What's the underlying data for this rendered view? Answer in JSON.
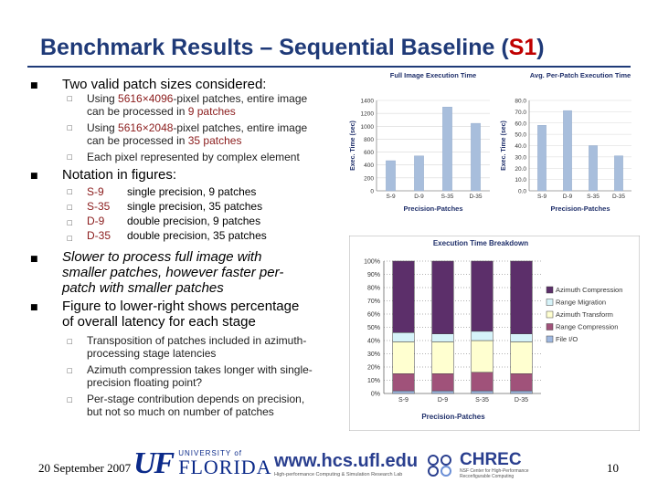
{
  "slide": {
    "title_prefix": "Benchmark Results – Sequential Baseline (",
    "title_accent": "S1",
    "title_suffix": ")",
    "bullets": [
      {
        "text": "Two valid patch sizes considered:",
        "subs": [
          {
            "pre": "Using ",
            "hl": "5616×4096",
            "post": "-pixel patches, entire image",
            "line2_pre": "can be processed in ",
            "line2_hl": "9 patches",
            "line2_post": ""
          },
          {
            "pre": "Using ",
            "hl": "5616×2048",
            "post": "-pixel patches, entire image",
            "line2_pre": "can be processed in ",
            "line2_hl": "35 patches",
            "line2_post": ""
          },
          {
            "pre": "Each pixel represented by complex element",
            "hl": "",
            "post": "",
            "line2_pre": "",
            "line2_hl": "",
            "line2_post": ""
          }
        ]
      },
      {
        "text": "Notation in figures:",
        "notation": [
          {
            "code": "S-9",
            "desc": "single precision, 9 patches"
          },
          {
            "code": "S-35",
            "desc": "single precision, 35 patches"
          },
          {
            "code": "D-9",
            "desc": "double precision, 9 patches"
          },
          {
            "code": "D-35",
            "desc": "double precision, 35 patches"
          }
        ]
      },
      {
        "lines": [
          "Slower to process full image with",
          "smaller patches, however faster per-",
          "patch with smaller patches"
        ]
      },
      {
        "lines": [
          "Figure to lower-right shows percentage",
          "of overall latency for each stage"
        ],
        "subs": [
          [
            "Transposition of patches included in azimuth-",
            "processing stage latencies"
          ],
          [
            "Azimuth compression takes longer with single-",
            "precision floating point?"
          ],
          [
            "Per-stage contribution depends on precision,",
            "but not so much on number of patches"
          ]
        ]
      }
    ],
    "footer_date": "20 September 2007",
    "page_number": "10",
    "logos": {
      "uf_mark": "UF",
      "uf_university": "UNIVERSITY of",
      "uf_florida": "FLORIDA",
      "hcs_url": "www.hcs.ufl.edu",
      "hcs_sub": "High-performance Computing & Simulation Research Lab",
      "chrec_name": "CHREC",
      "chrec_sub1": "NSF Center for High-Performance",
      "chrec_sub2": "Reconfigurable Computing"
    }
  },
  "chart_data": [
    {
      "type": "bar",
      "title": "Full Image Execution Time",
      "xlabel": "Precision-Patches",
      "ylabel": "Exec. Time (sec)",
      "categories": [
        "S-9",
        "D-9",
        "S-35",
        "D-35"
      ],
      "values": [
        500,
        580,
        1390,
        1120
      ],
      "ylim": [
        0,
        1500
      ],
      "yticks": [
        "0",
        "200",
        "400",
        "600",
        "800",
        "1000",
        "1200",
        "1400"
      ],
      "color": "#a8bedc",
      "grid": true
    },
    {
      "type": "bar",
      "title": "Avg. Per-Patch Execution Time",
      "xlabel": "Precision-Patches",
      "ylabel": "Exec. Time (sec)",
      "categories": [
        "S-9",
        "D-9",
        "S-35",
        "D-35"
      ],
      "values": [
        58,
        71,
        40,
        31
      ],
      "ylim": [
        0,
        80
      ],
      "yticks": [
        "0.0",
        "10.0",
        "20.0",
        "30.0",
        "40.0",
        "50.0",
        "60.0",
        "70.0",
        "80.0"
      ],
      "color": "#a8bedc",
      "grid": true
    },
    {
      "type": "bar",
      "stacked": true,
      "title": "Execution Time Breakdown",
      "xlabel": "Precision-Patches",
      "categories": [
        "S-9",
        "D-9",
        "S-35",
        "D-35"
      ],
      "yticks": [
        "0%",
        "10%",
        "20%",
        "30%",
        "40%",
        "50%",
        "60%",
        "70%",
        "80%",
        "90%",
        "100%"
      ],
      "ylim": [
        0,
        100
      ],
      "legend_position": "right",
      "series": [
        {
          "name": "File I/O",
          "color": "#9fb8e0",
          "values": [
            2,
            2,
            2,
            2
          ]
        },
        {
          "name": "Range Compression",
          "color": "#a0527a",
          "values": [
            13,
            13,
            14,
            13
          ]
        },
        {
          "name": "Azimuth Transform",
          "color": "#ffffd0",
          "values": [
            24,
            24,
            24,
            24
          ]
        },
        {
          "name": "Range Migration",
          "color": "#d6f3f9",
          "values": [
            7,
            6,
            7,
            6
          ]
        },
        {
          "name": "Azimuth Compression",
          "color": "#5c2f6a",
          "values": [
            54,
            55,
            53,
            55
          ]
        }
      ]
    }
  ]
}
